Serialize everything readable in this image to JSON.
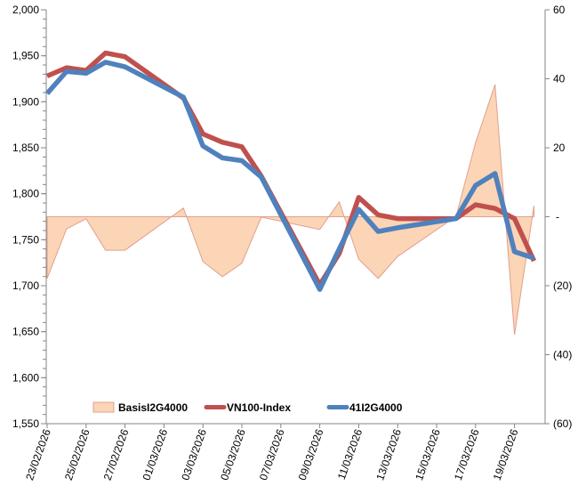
{
  "chart_data": {
    "type": "line",
    "title": "",
    "dates": [
      "23/02/2026",
      "24/02/2026",
      "25/02/2026",
      "26/02/2026",
      "27/02/2026",
      "02/03/2026",
      "03/03/2026",
      "04/03/2026",
      "05/03/2026",
      "06/03/2026",
      "09/03/2026",
      "10/03/2026",
      "11/03/2026",
      "12/03/2026",
      "13/03/2026",
      "16/03/2026",
      "17/03/2026",
      "18/03/2026",
      "19/03/2026",
      "20/03/2026"
    ],
    "x_tick_labels": [
      "23/02/2026",
      "25/02/2026",
      "27/02/2026",
      "01/03/2026",
      "03/03/2026",
      "05/03/2026",
      "07/03/2026",
      "09/03/2026",
      "11/03/2026",
      "13/03/2026",
      "15/03/2026",
      "17/03/2026",
      "19/03/2026"
    ],
    "left_axis": {
      "ylim": [
        1550,
        2000
      ],
      "tick_labels": [
        "1,550",
        "1,600",
        "1,650",
        "1,700",
        "1,750",
        "1,800",
        "1,850",
        "1,900",
        "1,950",
        "2,000"
      ]
    },
    "right_axis": {
      "ylim": [
        -60,
        60
      ],
      "tick_labels": [
        "(60)",
        "(40)",
        "(20)",
        "-",
        "20",
        "40",
        "60"
      ]
    },
    "series": [
      {
        "name": "BasisI2G4000",
        "type": "area",
        "axis": "right",
        "color": "#FBD5B5",
        "stroke": "#E0A090",
        "values": [
          -17.9,
          -3.5,
          -0.6,
          -9.7,
          -9.7,
          2.5,
          -13,
          -17.4,
          -13.5,
          -0.1,
          -3.7,
          4.3,
          -12.3,
          -17.9,
          -11.5,
          0.1,
          21.5,
          38.3,
          -34.2,
          3.2
        ]
      },
      {
        "name": "VN100-Index",
        "type": "line",
        "axis": "left",
        "color": "#C0504D",
        "values": [
          1928,
          1937,
          1934,
          1953,
          1949,
          1904,
          1865,
          1856,
          1851,
          1819,
          1701,
          1735,
          1796,
          1777,
          1773,
          1773,
          1788,
          1784,
          1773,
          1727
        ]
      },
      {
        "name": "41I2G4000",
        "type": "line",
        "axis": "left",
        "color": "#4F81BD",
        "values": [
          1909,
          1933,
          1931,
          1943,
          1938,
          1905,
          1852,
          1839,
          1836,
          1818,
          1696,
          1740,
          1783,
          1759,
          1763,
          1773,
          1809,
          1822,
          1737,
          1730
        ]
      }
    ],
    "legend": "bottom-inside"
  }
}
